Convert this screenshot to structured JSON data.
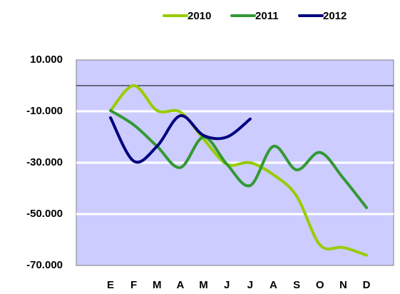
{
  "chart_data": {
    "type": "line",
    "categories": [
      "E",
      "F",
      "M",
      "A",
      "M",
      "J",
      "J",
      "A",
      "S",
      "O",
      "N",
      "D"
    ],
    "series": [
      {
        "name": "2010",
        "color": "#99cc00",
        "values": [
          -9700,
          0,
          -9700,
          -10300,
          -20800,
          -30600,
          -30000,
          -34700,
          -43000,
          -62000,
          -63000,
          -66000
        ]
      },
      {
        "name": "2011",
        "color": "#339933",
        "values": [
          -9700,
          -15300,
          -23600,
          -31900,
          -20000,
          -30600,
          -38900,
          -23600,
          -32800,
          -26000,
          -36000,
          -47500
        ]
      },
      {
        "name": "2012",
        "color": "#000080",
        "values": [
          -12500,
          -29400,
          -23600,
          -11700,
          -19400,
          -20000,
          -13000,
          null,
          null,
          null,
          null,
          null
        ]
      }
    ],
    "ylim": [
      -70000,
      10000
    ],
    "yticks": [
      {
        "value": -70000,
        "label": "-70.000"
      },
      {
        "value": -50000,
        "label": "-50.000"
      },
      {
        "value": -30000,
        "label": "-30.000"
      },
      {
        "value": -10000,
        "label": "-10.000"
      },
      {
        "value": 10000,
        "label": "10.000"
      }
    ],
    "grid": true,
    "legend": "top-right"
  }
}
